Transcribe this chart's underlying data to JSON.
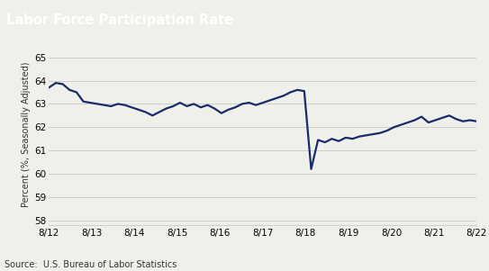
{
  "title": "Labor Force Participation Rate",
  "ylabel": "Percent (%, Seasonally Adjusted)",
  "source": "Source:  U.S. Bureau of Labor Statistics",
  "line_color": "#1a2b6b",
  "plot_bg_color": "#f0f0eb",
  "title_bg_color": "#5a5a5a",
  "title_text_color": "#ffffff",
  "ylim": [
    57.8,
    65.6
  ],
  "yticks": [
    58,
    59,
    60,
    61,
    62,
    63,
    64,
    65
  ],
  "xtick_labels": [
    "8/12",
    "8/13",
    "8/14",
    "8/15",
    "8/16",
    "8/17",
    "8/18",
    "8/19",
    "8/20",
    "8/21",
    "8/22"
  ],
  "n_xticks": 11,
  "values": [
    63.7,
    63.9,
    63.85,
    63.6,
    63.5,
    63.1,
    63.05,
    63.0,
    62.95,
    62.9,
    63.0,
    62.95,
    62.85,
    62.75,
    62.65,
    62.5,
    62.65,
    62.8,
    62.9,
    63.05,
    62.9,
    63.0,
    62.85,
    62.95,
    62.8,
    62.6,
    62.75,
    62.85,
    63.0,
    63.05,
    62.95,
    63.05,
    63.15,
    63.25,
    63.35,
    63.5,
    63.6,
    63.55,
    60.2,
    61.45,
    61.35,
    61.5,
    61.4,
    61.55,
    61.5,
    61.6,
    61.65,
    61.7,
    61.75,
    61.85,
    62.0,
    62.1,
    62.2,
    62.3,
    62.45,
    62.2,
    62.3,
    62.4,
    62.5,
    62.35,
    62.25,
    62.3,
    62.25
  ],
  "line_width": 1.6,
  "grid_color": "#c8c8c8",
  "tick_fontsize": 7.5,
  "ylabel_fontsize": 7,
  "source_fontsize": 7,
  "title_fontsize": 10.5
}
